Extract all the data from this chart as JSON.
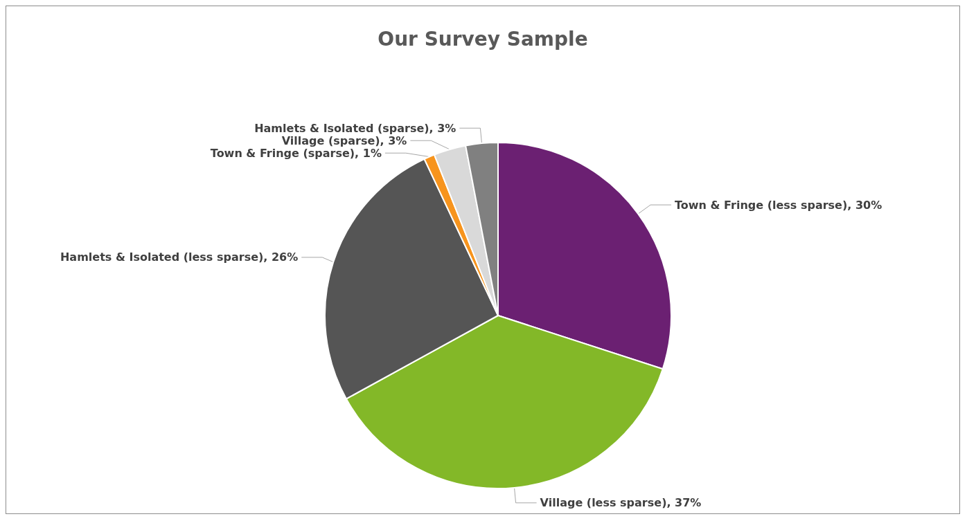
{
  "chart_data": {
    "type": "pie",
    "title": "Our Survey Sample",
    "categories": [
      "Town & Fringe (less sparse)",
      "Village (less sparse)",
      "Hamlets & Isolated (less sparse)",
      "Town & Fringe (sparse)",
      "Village (sparse)",
      "Hamlets & Isolated (sparse)"
    ],
    "values": [
      30,
      37,
      26,
      1,
      3,
      3
    ],
    "colors": [
      "#6b2072",
      "#83b828",
      "#555555",
      "#f7941d",
      "#d9d9d9",
      "#808080"
    ],
    "value_labels": [
      ", 30%",
      ", 37%",
      ", 26%",
      ", 1%",
      ", 3%",
      ", 3%"
    ],
    "legend": false
  }
}
